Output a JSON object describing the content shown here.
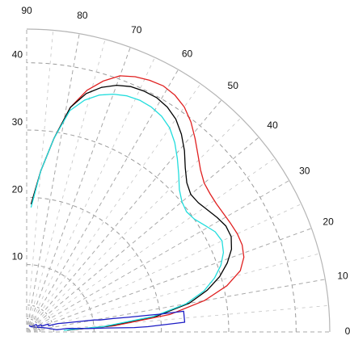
{
  "chart_data": {
    "type": "line",
    "subtype": "polar-quadrant",
    "title": "",
    "angular_axis": {
      "unit": "degrees",
      "range": [
        0,
        90
      ],
      "ticks": [
        0,
        10,
        20,
        30,
        40,
        50,
        60,
        70,
        80,
        90
      ],
      "tick_labels": [
        "0",
        "10",
        "20",
        "30",
        "40",
        "50",
        "60",
        "70",
        "80",
        "90"
      ],
      "grid": "dashed"
    },
    "radial_axis": {
      "range": [
        0,
        45
      ],
      "ticks": [
        10,
        20,
        30,
        40
      ],
      "tick_labels": [
        "10",
        "20",
        "30",
        "40"
      ],
      "grid": "dashed"
    },
    "series": [
      {
        "color": "#e02020",
        "points": [
          [
            88,
            19
          ],
          [
            85,
            24
          ],
          [
            82,
            29
          ],
          [
            79,
            34
          ],
          [
            76,
            37
          ],
          [
            73,
            39
          ],
          [
            70,
            40.5
          ],
          [
            67,
            41.2
          ],
          [
            64,
            41.6
          ],
          [
            61,
            41.8
          ],
          [
            58,
            41.5
          ],
          [
            55,
            40.8
          ],
          [
            52,
            39.6
          ],
          [
            49,
            38.1
          ],
          [
            46,
            36.6
          ],
          [
            43,
            35.3
          ],
          [
            40,
            34.4
          ],
          [
            37,
            34.1
          ],
          [
            34,
            34.0
          ],
          [
            31,
            34.1
          ],
          [
            28,
            34.3
          ],
          [
            25,
            34.5
          ],
          [
            22,
            34.5
          ],
          [
            19,
            34.1
          ],
          [
            16,
            33.0
          ],
          [
            13,
            30.5
          ],
          [
            10,
            26.8
          ],
          [
            7,
            21.5
          ],
          [
            4,
            13
          ],
          [
            2.5,
            6
          ]
        ]
      },
      {
        "color": "#000000",
        "points": [
          [
            88,
            19
          ],
          [
            85,
            24
          ],
          [
            82,
            29
          ],
          [
            79,
            34
          ],
          [
            76,
            36.5
          ],
          [
            73,
            38
          ],
          [
            70,
            39
          ],
          [
            67,
            39.6
          ],
          [
            64,
            39.8
          ],
          [
            61,
            39.8
          ],
          [
            58,
            39.4
          ],
          [
            55,
            38.6
          ],
          [
            52,
            37.3
          ],
          [
            49,
            35.7
          ],
          [
            46,
            33.9
          ],
          [
            43,
            32.5
          ],
          [
            40,
            31.8
          ],
          [
            37,
            31.9
          ],
          [
            34,
            32.4
          ],
          [
            31,
            33.0
          ],
          [
            28,
            33.5
          ],
          [
            25,
            33.5
          ],
          [
            22,
            32.8
          ],
          [
            19,
            31.5
          ],
          [
            16,
            29.8
          ],
          [
            13,
            27.5
          ],
          [
            10,
            24.5
          ],
          [
            7,
            19.5
          ],
          [
            4,
            12
          ],
          [
            2.5,
            6
          ]
        ]
      },
      {
        "color": "#22dddd",
        "points": [
          [
            88,
            18.5
          ],
          [
            85,
            24
          ],
          [
            82,
            29
          ],
          [
            79,
            33.5
          ],
          [
            76,
            35.5
          ],
          [
            73,
            36.8
          ],
          [
            70,
            37.6
          ],
          [
            67,
            38.1
          ],
          [
            64,
            38.3
          ],
          [
            61,
            38.2
          ],
          [
            58,
            37.8
          ],
          [
            55,
            37.0
          ],
          [
            52,
            35.7
          ],
          [
            49,
            34.1
          ],
          [
            46,
            32.5
          ],
          [
            43,
            31.0
          ],
          [
            40,
            30.1
          ],
          [
            37,
            29.7
          ],
          [
            34,
            30.0
          ],
          [
            31,
            30.8
          ],
          [
            28,
            31.7
          ],
          [
            25,
            32.0
          ],
          [
            22,
            31.5
          ],
          [
            19,
            30.5
          ],
          [
            16,
            29.0
          ],
          [
            13,
            27.0
          ],
          [
            10,
            24.0
          ],
          [
            7,
            19
          ],
          [
            4,
            11.5
          ],
          [
            2.5,
            5.5
          ]
        ]
      },
      {
        "color": "#1b1bc4",
        "points": [
          [
            70,
            1
          ],
          [
            50,
            1
          ],
          [
            38,
            1.8
          ],
          [
            33,
            1.8
          ],
          [
            28,
            1.8
          ],
          [
            26,
            2.4
          ],
          [
            21,
            2.4
          ],
          [
            20,
            3.4
          ],
          [
            16,
            3.4
          ],
          [
            15,
            4.8
          ],
          [
            13.5,
            5.6
          ],
          [
            11.5,
            7.6
          ],
          [
            10,
            10.2
          ],
          [
            9.3,
            11
          ],
          [
            8.8,
            13
          ],
          [
            8.2,
            15.2
          ],
          [
            7.8,
            18.5
          ],
          [
            7.6,
            20
          ],
          [
            7.5,
            23.5
          ],
          [
            3.5,
            23.5
          ],
          [
            2.5,
            18
          ],
          [
            2.3,
            16
          ],
          [
            2.8,
            12
          ],
          [
            3.2,
            9
          ],
          [
            5,
            6
          ],
          [
            4,
            4.5
          ],
          [
            10,
            3.2
          ],
          [
            15,
            2.5
          ],
          [
            25,
            1.6
          ],
          [
            40,
            1.2
          ],
          [
            50,
            1.0
          ]
        ]
      },
      {
        "color": "#888888",
        "dashed": true,
        "points": [
          [
            45,
            1.2
          ],
          [
            30,
            1.5
          ],
          [
            15,
            1.8
          ],
          [
            5,
            2.1
          ]
        ]
      }
    ]
  }
}
